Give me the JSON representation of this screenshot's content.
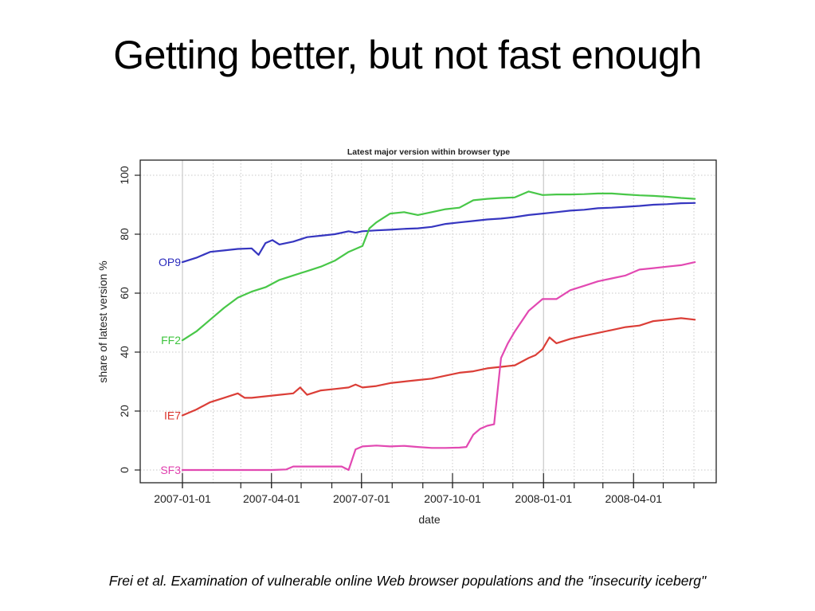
{
  "slide": {
    "title": "Getting better, but not fast enough",
    "citation": "Frei et al. Examination of vulnerable online Web browser populations and the \"insecurity iceberg\""
  },
  "chart_data": {
    "type": "line",
    "title": "Latest major version within browser type",
    "xlabel": "date",
    "ylabel": "share of latest version %",
    "x_unit": "days since 2007-01-01",
    "xlim": [
      -18,
      535
    ],
    "ylim": [
      -4,
      105
    ],
    "yticks": [
      0,
      20,
      40,
      60,
      80,
      100
    ],
    "ytick_labels": [
      "0",
      "20",
      "40",
      "60",
      "80",
      "100"
    ],
    "xticks_major": [
      0,
      90,
      181,
      273,
      365,
      456
    ],
    "xtick_labels": [
      "2007-01-01",
      "2007-04-01",
      "2007-07-01",
      "2007-10-01",
      "2008-01-01",
      "2008-04-01"
    ],
    "xticks_minor": [
      0,
      59,
      90,
      120,
      151,
      181,
      212,
      243,
      273,
      304,
      334,
      365,
      396,
      425,
      456,
      486,
      517
    ],
    "grid": true,
    "x_gridlines": [
      31,
      59,
      120,
      151,
      212,
      243,
      304,
      334,
      396,
      425,
      486,
      517
    ],
    "emphasis_gridlines": [
      0,
      365
    ],
    "series": [
      {
        "name": "OP9",
        "color": "#2b2bbd",
        "x": [
          0,
          14,
          28,
          42,
          56,
          70,
          77,
          84,
          91,
          98,
          112,
          126,
          140,
          154,
          168,
          175,
          182,
          196,
          210,
          224,
          238,
          252,
          266,
          280,
          294,
          308,
          322,
          336,
          350,
          364,
          378,
          392,
          406,
          420,
          434,
          448,
          462,
          476,
          490,
          504,
          518
        ],
        "y": [
          70.5,
          72,
          74,
          74.5,
          75,
          75.2,
          73,
          77,
          78,
          76.5,
          77.5,
          79,
          79.5,
          80,
          81,
          80.5,
          81,
          81.3,
          81.5,
          81.8,
          82,
          82.5,
          83.5,
          84,
          84.5,
          85,
          85.3,
          85.8,
          86.5,
          87,
          87.5,
          88,
          88.3,
          88.8,
          89,
          89.3,
          89.6,
          90,
          90.2,
          90.5,
          90.6
        ]
      },
      {
        "name": "FF2",
        "color": "#3ec43e",
        "x": [
          0,
          14,
          28,
          42,
          56,
          70,
          84,
          98,
          112,
          126,
          140,
          154,
          168,
          175,
          182,
          189,
          196,
          203,
          210,
          224,
          238,
          252,
          266,
          280,
          294,
          308,
          322,
          336,
          350,
          364,
          378,
          392,
          406,
          420,
          434,
          448,
          462,
          476,
          490,
          504,
          518
        ],
        "y": [
          44,
          47,
          51,
          55,
          58.5,
          60.5,
          62,
          64.5,
          66,
          67.5,
          69,
          71,
          74,
          75,
          76,
          82,
          84,
          85.5,
          87,
          87.5,
          86.5,
          87.5,
          88.5,
          89,
          91.5,
          92,
          92.3,
          92.5,
          94.5,
          93.3,
          93.5,
          93.5,
          93.6,
          93.8,
          93.8,
          93.5,
          93.2,
          93,
          92.7,
          92.3,
          92
        ]
      },
      {
        "name": "IE7",
        "color": "#d9342c",
        "x": [
          0,
          14,
          28,
          42,
          56,
          63,
          70,
          84,
          98,
          112,
          119,
          126,
          140,
          154,
          168,
          175,
          182,
          196,
          210,
          224,
          238,
          252,
          266,
          280,
          294,
          308,
          322,
          336,
          350,
          357,
          364,
          371,
          378,
          392,
          406,
          420,
          434,
          448,
          462,
          476,
          490,
          504,
          518
        ],
        "y": [
          18.5,
          20.5,
          23,
          24.5,
          26,
          24.5,
          24.5,
          25,
          25.5,
          26,
          28,
          25.5,
          27,
          27.5,
          28,
          29,
          28,
          28.5,
          29.5,
          30,
          30.5,
          31,
          32,
          33,
          33.5,
          34.5,
          35,
          35.5,
          38,
          39,
          41,
          45,
          43,
          44.5,
          45.5,
          46.5,
          47.5,
          48.5,
          49,
          50.5,
          51,
          51.5,
          51
        ]
      },
      {
        "name": "SF3",
        "color": "#e03fae",
        "x": [
          0,
          30,
          60,
          90,
          105,
          112,
          126,
          140,
          154,
          161,
          168,
          175,
          182,
          196,
          210,
          224,
          238,
          252,
          266,
          280,
          287,
          294,
          301,
          308,
          315,
          322,
          329,
          336,
          350,
          364,
          378,
          392,
          406,
          420,
          434,
          448,
          462,
          476,
          490,
          504,
          518
        ],
        "y": [
          0,
          0,
          0,
          0,
          0.2,
          1.2,
          1.2,
          1.2,
          1.2,
          1.2,
          0,
          7,
          8,
          8.3,
          8,
          8.2,
          7.8,
          7.5,
          7.5,
          7.6,
          7.8,
          12,
          14,
          15,
          15.5,
          38,
          43,
          47,
          54,
          58,
          58,
          61,
          62.5,
          64,
          65,
          66,
          68,
          68.5,
          69,
          69.5,
          70.5
        ]
      }
    ]
  }
}
